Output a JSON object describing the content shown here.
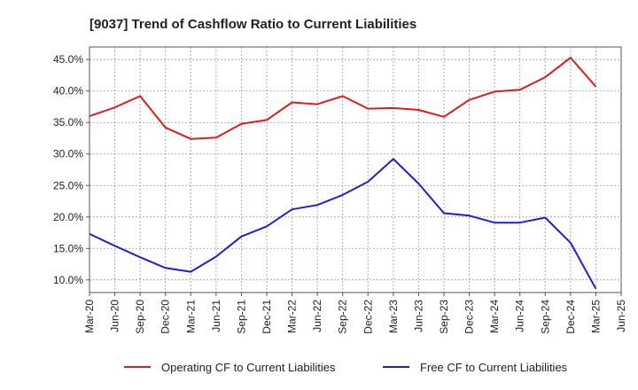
{
  "chart_data": {
    "type": "line",
    "title": "[9037]  Trend of Cashflow Ratio to Current Liabilities",
    "xlabel": "",
    "ylabel": "",
    "x": [
      "Mar-20",
      "Jun-20",
      "Sep-20",
      "Dec-20",
      "Mar-21",
      "Jun-21",
      "Sep-21",
      "Dec-21",
      "Mar-22",
      "Jun-22",
      "Sep-22",
      "Dec-22",
      "Mar-23",
      "Jun-23",
      "Sep-23",
      "Dec-23",
      "Mar-24",
      "Jun-24",
      "Sep-24",
      "Dec-24",
      "Mar-25",
      "Jun-25"
    ],
    "y_ticks": [
      10.0,
      15.0,
      20.0,
      25.0,
      30.0,
      35.0,
      40.0,
      45.0
    ],
    "y_tick_labels": [
      "10.0%",
      "15.0%",
      "20.0%",
      "25.0%",
      "30.0%",
      "35.0%",
      "40.0%",
      "45.0%"
    ],
    "ylim": [
      8.0,
      47.0
    ],
    "grid": true,
    "legend_position": "bottom",
    "series": [
      {
        "name": "Operating CF to Current Liabilities",
        "color": "#e31a1c",
        "values": [
          36.0,
          37.4,
          39.2,
          34.2,
          32.4,
          32.6,
          34.8,
          35.4,
          38.2,
          37.9,
          39.2,
          37.2,
          37.3,
          37.0,
          35.9,
          38.6,
          39.9,
          40.2,
          42.2,
          45.3,
          40.7,
          null
        ]
      },
      {
        "name": "Free CF to Current Liabilities",
        "color": "#1f1fd6",
        "values": [
          17.3,
          15.4,
          13.6,
          11.9,
          11.3,
          13.7,
          16.9,
          18.5,
          21.2,
          21.9,
          23.5,
          25.6,
          29.2,
          25.3,
          20.6,
          20.2,
          19.1,
          19.1,
          19.9,
          15.9,
          8.6,
          null
        ]
      }
    ]
  }
}
